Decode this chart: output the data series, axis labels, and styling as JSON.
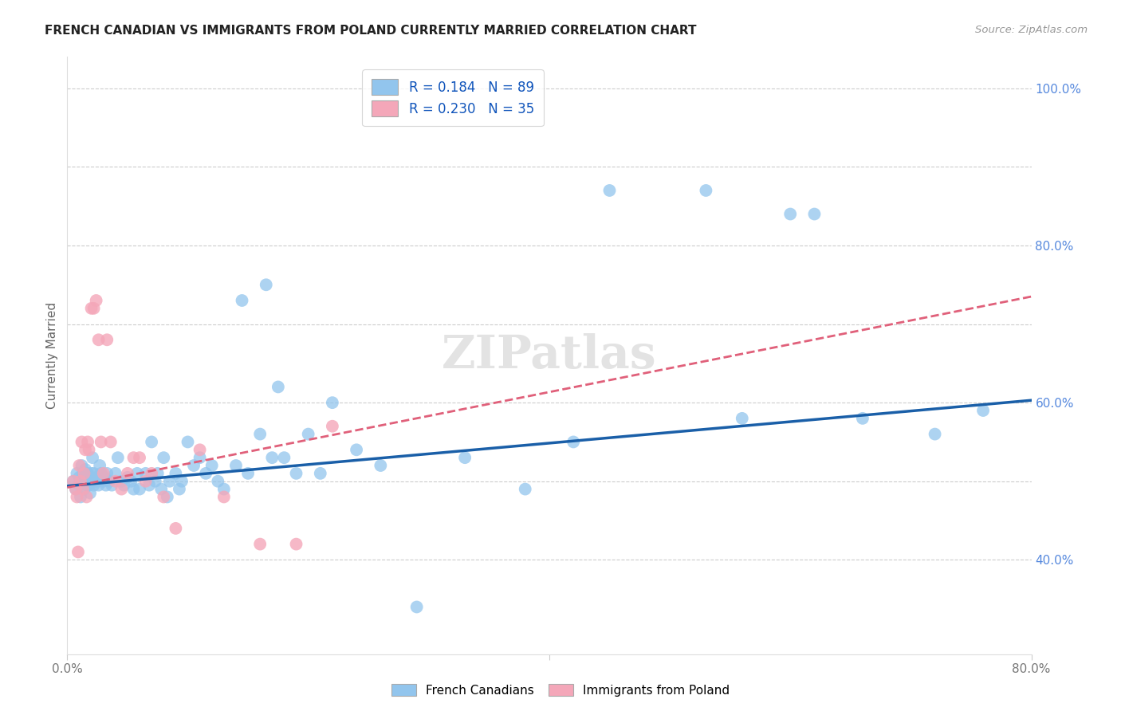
{
  "title": "FRENCH CANADIAN VS IMMIGRANTS FROM POLAND CURRENTLY MARRIED CORRELATION CHART",
  "source": "Source: ZipAtlas.com",
  "ylabel": "Currently Married",
  "xlim": [
    0.0,
    0.8
  ],
  "ylim": [
    0.28,
    1.04
  ],
  "blue_color": "#92C5ED",
  "pink_color": "#F4A7B9",
  "trendline_blue": "#1A5FA8",
  "trendline_pink": "#E0607A",
  "watermark": "ZIPatlas",
  "blue_x": [
    0.005,
    0.007,
    0.008,
    0.01,
    0.01,
    0.011,
    0.012,
    0.013,
    0.013,
    0.014,
    0.015,
    0.015,
    0.016,
    0.016,
    0.017,
    0.018,
    0.018,
    0.019,
    0.02,
    0.02,
    0.021,
    0.022,
    0.022,
    0.023,
    0.024,
    0.025,
    0.026,
    0.027,
    0.028,
    0.03,
    0.031,
    0.032,
    0.033,
    0.035,
    0.037,
    0.04,
    0.042,
    0.045,
    0.047,
    0.05,
    0.053,
    0.055,
    0.058,
    0.06,
    0.065,
    0.068,
    0.07,
    0.073,
    0.075,
    0.078,
    0.08,
    0.083,
    0.085,
    0.09,
    0.093,
    0.095,
    0.1,
    0.105,
    0.11,
    0.115,
    0.12,
    0.125,
    0.13,
    0.14,
    0.145,
    0.15,
    0.16,
    0.165,
    0.17,
    0.175,
    0.18,
    0.19,
    0.2,
    0.21,
    0.22,
    0.24,
    0.26,
    0.29,
    0.33,
    0.38,
    0.42,
    0.45,
    0.53,
    0.56,
    0.6,
    0.62,
    0.66,
    0.72,
    0.76
  ],
  "blue_y": [
    0.5,
    0.49,
    0.51,
    0.495,
    0.505,
    0.48,
    0.52,
    0.5,
    0.51,
    0.49,
    0.505,
    0.515,
    0.495,
    0.5,
    0.51,
    0.495,
    0.505,
    0.485,
    0.51,
    0.5,
    0.53,
    0.495,
    0.51,
    0.5,
    0.505,
    0.5,
    0.495,
    0.52,
    0.51,
    0.5,
    0.505,
    0.495,
    0.51,
    0.5,
    0.495,
    0.51,
    0.53,
    0.5,
    0.495,
    0.505,
    0.5,
    0.49,
    0.51,
    0.49,
    0.51,
    0.495,
    0.55,
    0.5,
    0.51,
    0.49,
    0.53,
    0.48,
    0.5,
    0.51,
    0.49,
    0.5,
    0.55,
    0.52,
    0.53,
    0.51,
    0.52,
    0.5,
    0.49,
    0.52,
    0.73,
    0.51,
    0.56,
    0.75,
    0.53,
    0.62,
    0.53,
    0.51,
    0.56,
    0.51,
    0.6,
    0.54,
    0.52,
    0.34,
    0.53,
    0.49,
    0.55,
    0.87,
    0.87,
    0.58,
    0.84,
    0.84,
    0.58,
    0.56,
    0.59
  ],
  "pink_x": [
    0.005,
    0.007,
    0.008,
    0.009,
    0.01,
    0.011,
    0.012,
    0.013,
    0.014,
    0.015,
    0.016,
    0.017,
    0.018,
    0.02,
    0.022,
    0.024,
    0.026,
    0.028,
    0.03,
    0.033,
    0.036,
    0.04,
    0.045,
    0.05,
    0.055,
    0.06,
    0.065,
    0.07,
    0.08,
    0.09,
    0.11,
    0.13,
    0.16,
    0.19,
    0.22
  ],
  "pink_y": [
    0.5,
    0.49,
    0.48,
    0.41,
    0.52,
    0.5,
    0.55,
    0.49,
    0.51,
    0.54,
    0.48,
    0.55,
    0.54,
    0.72,
    0.72,
    0.73,
    0.68,
    0.55,
    0.51,
    0.68,
    0.55,
    0.5,
    0.49,
    0.51,
    0.53,
    0.53,
    0.5,
    0.51,
    0.48,
    0.44,
    0.54,
    0.48,
    0.42,
    0.42,
    0.57
  ]
}
